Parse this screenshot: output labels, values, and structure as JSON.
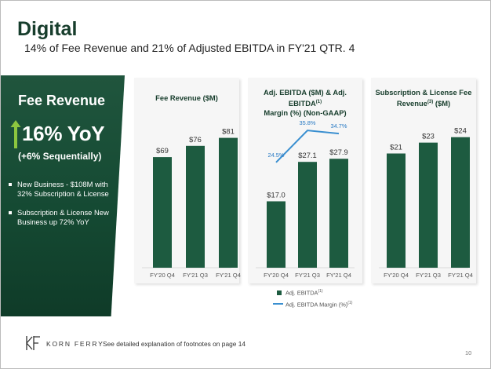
{
  "title": "Digital",
  "subtitle": "14% of Fee Revenue and 21% of Adjusted EBITDA in FY'21 QTR. 4",
  "panel": {
    "heading": "Fee Revenue",
    "headline": "16% YoY",
    "sequential": "(+6% Sequentially)",
    "bullets": [
      "New Business - $108M with 32% Subscription & License",
      "Subscription & License New Business up 72% YoY"
    ]
  },
  "chart_data": [
    {
      "type": "bar",
      "title": "Fee Revenue ($M)",
      "categories": [
        "FY'20 Q4",
        "FY'21 Q3",
        "FY'21 Q4"
      ],
      "values": [
        69,
        76,
        81
      ],
      "value_labels": [
        "$69",
        "$76",
        "$81"
      ],
      "ylim": [
        0,
        95
      ],
      "color": "#1d5b40"
    },
    {
      "type": "bar",
      "title_line1": "Adj. EBITDA ($M) & Adj. EBITDA",
      "title_sup": "(1)",
      "title_line2": "Margin (%) (Non-GAAP)",
      "categories": [
        "FY'20 Q4",
        "FY'21 Q3",
        "FY'21 Q4"
      ],
      "values": [
        17.0,
        27.1,
        27.9
      ],
      "value_labels": [
        "$17.0",
        "$27.1",
        "$27.9"
      ],
      "ylim": [
        0,
        39
      ],
      "color": "#1d5b40",
      "line": {
        "name": "Adj. EBITDA Margin (%)",
        "values": [
          24.5,
          35.8,
          34.7
        ],
        "labels": [
          "24.5%",
          "35.8%",
          "34.7%"
        ],
        "ylim": [
          15,
          40
        ],
        "color": "#3a8fd0"
      },
      "legend": {
        "bar_label": "Adj. EBITDA",
        "bar_sup": "(1)",
        "line_label": "Adj. EBITDA Margin (%)",
        "line_sup": "(1)"
      }
    },
    {
      "type": "bar",
      "title_line1": "Subscription & License Fee",
      "title_line2_pre": "Revenue",
      "title_sup": "(3)",
      "title_line2_post": " ($M)",
      "categories": [
        "FY'20 Q4",
        "FY'21 Q3",
        "FY'21 Q4"
      ],
      "values": [
        21,
        23,
        24
      ],
      "value_labels": [
        "$21",
        "$23",
        "$24"
      ],
      "ylim": [
        0,
        28
      ],
      "color": "#1d5b40"
    }
  ],
  "footer": {
    "brand": "KORN FERRY",
    "footnote": "See detailed explanation of footnotes on page 14",
    "page_number": "10"
  },
  "colors": {
    "brand_green": "#173d2c",
    "bar_green": "#1d5b40",
    "line_blue": "#3a8fd0",
    "arrow_green": "#8dc63f"
  }
}
